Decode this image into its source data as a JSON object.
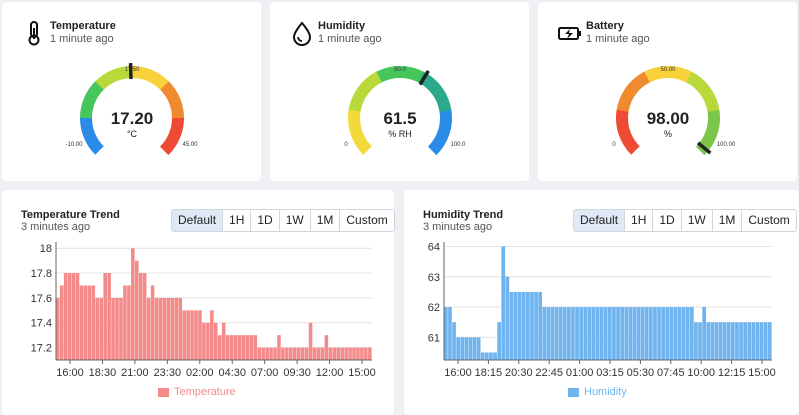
{
  "gauges": {
    "temperature": {
      "title": "Temperature",
      "updated": "1 minute ago",
      "value": "17.20",
      "value_num": 17.2,
      "unit": "°C",
      "min": -10,
      "max": 45,
      "min_label": "-10.00",
      "max_label": "45.00",
      "mid_label": "17.50",
      "icon": "thermometer-icon",
      "colors": [
        "#2c8be6",
        "#47c65c",
        "#b9d83a",
        "#f7d23a",
        "#f08a2e",
        "#ef4a34"
      ]
    },
    "humidity": {
      "title": "Humidity",
      "updated": "1 minute ago",
      "value": "61.5",
      "value_num": 61.5,
      "unit": "% RH",
      "min": 0,
      "max": 100,
      "min_label": "0",
      "max_label": "100.0",
      "mid_label": "50.0",
      "icon": "droplet-icon",
      "colors": [
        "#f3d93a",
        "#b9d83a",
        "#47c65c",
        "#2aaa8a",
        "#2a8ce6"
      ]
    },
    "battery": {
      "title": "Battery",
      "updated": "1 minute ago",
      "value": "98.00",
      "value_num": 98,
      "unit": "%",
      "min": 0,
      "max": 100,
      "min_label": "0",
      "max_label": "100.00",
      "mid_label": "50.00",
      "icon": "battery-charging-icon",
      "colors": [
        "#ef4a34",
        "#f08a2e",
        "#f7d23a",
        "#b9d83a",
        "#7cc74a"
      ]
    }
  },
  "range_buttons": [
    "Default",
    "1H",
    "1D",
    "1W",
    "1M",
    "Custom"
  ],
  "trends": {
    "temperature": {
      "title": "Temperature Trend",
      "updated": "3 minutes ago",
      "legend": "Temperature",
      "color": "#f48a8a"
    },
    "humidity": {
      "title": "Humidity Trend",
      "updated": "3 minutes ago",
      "legend": "Humidity",
      "color": "#6fb4ee"
    }
  },
  "chart_data": [
    {
      "type": "bar",
      "series_name": "Temperature",
      "ylim": [
        17.1,
        18.05
      ],
      "yticks": [
        "17.2",
        "17.4",
        "17.6",
        "17.8",
        "18"
      ],
      "ytick_values": [
        17.2,
        17.4,
        17.6,
        17.8,
        18.0
      ],
      "xticks": [
        "16:00",
        "18:30",
        "21:00",
        "23:30",
        "02:00",
        "04:30",
        "07:00",
        "09:30",
        "12:00",
        "15:00"
      ],
      "values": [
        17.6,
        17.7,
        17.8,
        17.8,
        17.8,
        17.8,
        17.7,
        17.7,
        17.7,
        17.7,
        17.6,
        17.6,
        17.8,
        17.8,
        17.6,
        17.6,
        17.6,
        17.7,
        17.7,
        18.0,
        17.9,
        17.8,
        17.8,
        17.6,
        17.7,
        17.6,
        17.6,
        17.6,
        17.6,
        17.6,
        17.6,
        17.6,
        17.5,
        17.5,
        17.5,
        17.5,
        17.5,
        17.4,
        17.4,
        17.5,
        17.4,
        17.3,
        17.4,
        17.3,
        17.3,
        17.3,
        17.3,
        17.3,
        17.3,
        17.3,
        17.3,
        17.2,
        17.2,
        17.2,
        17.2,
        17.2,
        17.3,
        17.2,
        17.2,
        17.2,
        17.2,
        17.2,
        17.2,
        17.2,
        17.4,
        17.2,
        17.2,
        17.2,
        17.3,
        17.2,
        17.2,
        17.2,
        17.2,
        17.2,
        17.2,
        17.2,
        17.2,
        17.2,
        17.2,
        17.2
      ]
    },
    {
      "type": "bar",
      "series_name": "Humidity",
      "ylim": [
        60.25,
        64.15
      ],
      "yticks": [
        "61",
        "62",
        "63",
        "64"
      ],
      "ytick_values": [
        61,
        62,
        63,
        64
      ],
      "xticks": [
        "16:00",
        "18:15",
        "20:30",
        "22:45",
        "01:00",
        "03:15",
        "05:30",
        "07:45",
        "10:00",
        "12:15",
        "15:00"
      ],
      "values": [
        62,
        62,
        61.5,
        61,
        61,
        61,
        61,
        61,
        61,
        60.5,
        60.5,
        60.5,
        60.5,
        61.5,
        64,
        63,
        62.5,
        62.5,
        62.5,
        62.5,
        62.5,
        62.5,
        62.5,
        62.5,
        62,
        62,
        62,
        62,
        62,
        62,
        62,
        62,
        62,
        62,
        62,
        62,
        62,
        62,
        62,
        62,
        62,
        62,
        62,
        62,
        62,
        62,
        62,
        62,
        62,
        62,
        62,
        62,
        62,
        62,
        62,
        62,
        62,
        62,
        62,
        62,
        62,
        61.5,
        61.5,
        62,
        61.5,
        61.5,
        61.5,
        61.5,
        61.5,
        61.5,
        61.5,
        61.5,
        61.5,
        61.5,
        61.5,
        61.5,
        61.5,
        61.5,
        61.5,
        61.5
      ]
    }
  ]
}
